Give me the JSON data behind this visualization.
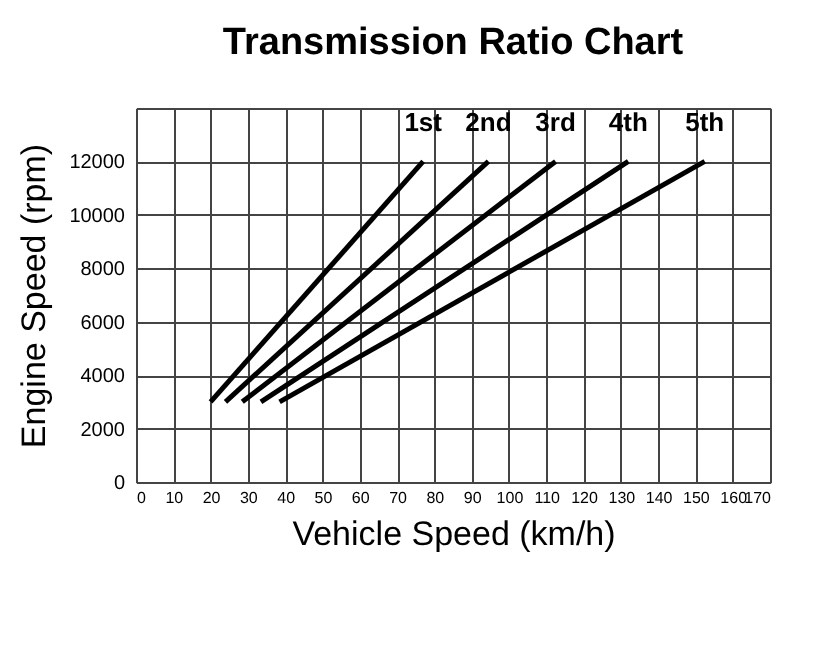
{
  "chart_data": {
    "type": "line",
    "title": "Transmission Ratio Chart",
    "xlabel": "Vehicle Speed (km/h)",
    "ylabel": "Engine Speed (rpm)",
    "series": [
      {
        "name": "1st",
        "color": "#000000",
        "x": [
          20,
          77
        ],
        "values": [
          3000,
          12000
        ]
      },
      {
        "name": "2nd",
        "color": "#000000",
        "x": [
          24,
          94.5
        ],
        "values": [
          3000,
          12000
        ]
      },
      {
        "name": "3rd",
        "color": "#000000",
        "x": [
          28.5,
          112.5
        ],
        "values": [
          3000,
          12000
        ]
      },
      {
        "name": "4th",
        "color": "#000000",
        "x": [
          33.5,
          132
        ],
        "values": [
          3000,
          12000
        ]
      },
      {
        "name": "5th",
        "color": "#000000",
        "x": [
          38.5,
          152.5
        ],
        "values": [
          3000,
          12000
        ]
      }
    ],
    "xlim": [
      0,
      170
    ],
    "xticks": [
      0,
      10,
      20,
      30,
      40,
      50,
      60,
      70,
      80,
      90,
      100,
      110,
      120,
      130,
      140,
      150,
      160,
      170
    ],
    "ylim": [
      0,
      14000
    ],
    "yticks": [
      0,
      2000,
      4000,
      6000,
      8000,
      10000,
      12000,
      {
        "value": 14000,
        "label": null
      }
    ],
    "grid": true,
    "legend": false,
    "marker": "none",
    "line_style": "solid"
  }
}
